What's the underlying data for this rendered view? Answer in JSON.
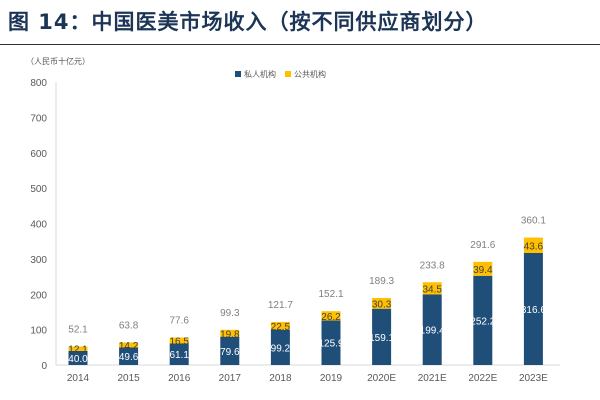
{
  "chart_data": {
    "type": "bar",
    "stacked": true,
    "title": "图 14：中国医美市场收入（按不同供应商划分）",
    "ylabel": "（人民币十亿元）",
    "xlabel": "",
    "ylim": [
      0,
      800
    ],
    "yticks": [
      0,
      100,
      200,
      300,
      400,
      500,
      600,
      700,
      800
    ],
    "grid": false,
    "legend_position": "top-center",
    "categories": [
      "2014",
      "2015",
      "2016",
      "2017",
      "2018",
      "2019",
      "2020E",
      "2021E",
      "2022E",
      "2023E"
    ],
    "series": [
      {
        "name": "私人机构",
        "color": "#1f4e79",
        "values": [
          40.0,
          49.6,
          61.1,
          79.6,
          99.2,
          125.9,
          159.1,
          199.4,
          252.2,
          316.6
        ]
      },
      {
        "name": "公共机构",
        "color": "#ffc000",
        "values": [
          12.1,
          14.2,
          16.5,
          19.8,
          22.5,
          26.2,
          30.3,
          34.5,
          39.4,
          43.6
        ]
      }
    ],
    "totals": [
      52.1,
      63.8,
      77.6,
      99.3,
      121.7,
      152.1,
      189.3,
      233.8,
      291.6,
      360.1
    ]
  }
}
